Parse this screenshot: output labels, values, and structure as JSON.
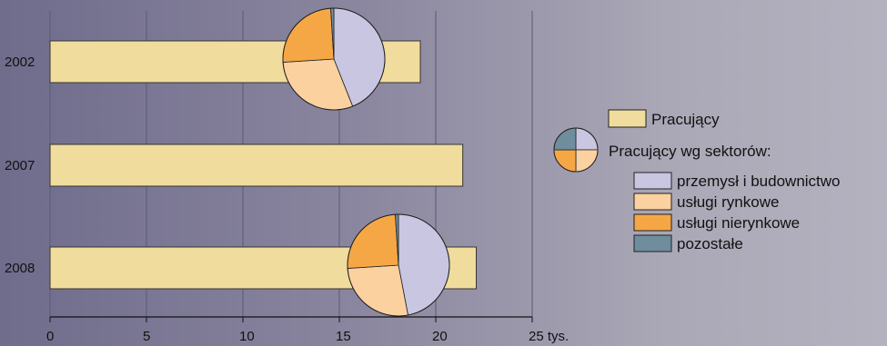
{
  "chart_data": {
    "type": "bar",
    "orientation": "horizontal",
    "categories": [
      "2002",
      "2007",
      "2008"
    ],
    "series": [
      {
        "name": "Pracujący",
        "values": [
          19.2,
          21.4,
          22.1
        ]
      }
    ],
    "xlim": [
      0,
      25
    ],
    "x_ticks": [
      "0",
      "5",
      "10",
      "15",
      "20",
      "25 tys."
    ],
    "grid": "vertical",
    "legend_position": "right",
    "legend": {
      "bar_label": "Pracujący",
      "pie_label": "Pracujący wg sektorów:",
      "sectors": [
        {
          "name": "przemysł i budownictwo",
          "color": "#c9c6e2"
        },
        {
          "name": "usługi rynkowe",
          "color": "#fcd1a0"
        },
        {
          "name": "usługi nierynkowe",
          "color": "#f6a745"
        },
        {
          "name": "pozostałe",
          "color": "#6f8d9c"
        }
      ]
    },
    "pies": [
      {
        "year": "2002",
        "values": [
          44,
          30,
          25,
          1
        ]
      },
      {
        "year": "2008",
        "values": [
          47,
          27,
          25,
          1
        ]
      }
    ],
    "colors": {
      "bar": "#f0dc9c",
      "background_left": "#6f6c8c",
      "background_right": "#b5b2c0"
    }
  }
}
